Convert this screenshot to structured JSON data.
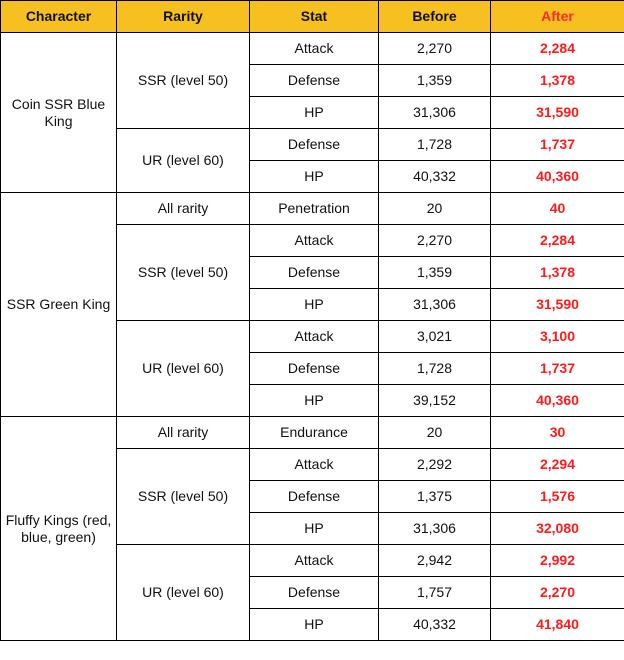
{
  "table": {
    "headers": {
      "character": "Character",
      "rarity": "Rarity",
      "stat": "Stat",
      "before": "Before",
      "after": "After"
    },
    "colors": {
      "header_bg": "#f6c021",
      "after_text": "#ff1a1a",
      "border": "#000000"
    },
    "groups": [
      {
        "character": "Coin SSR Blue King",
        "rarities": [
          {
            "rarity": "SSR (level 50)",
            "rows": [
              {
                "stat": "Attack",
                "before": "2,270",
                "after": "2,284"
              },
              {
                "stat": "Defense",
                "before": "1,359",
                "after": "1,378"
              },
              {
                "stat": "HP",
                "before": "31,306",
                "after": "31,590"
              }
            ]
          },
          {
            "rarity": "UR (level 60)",
            "rows": [
              {
                "stat": "Defense",
                "before": "1,728",
                "after": "1,737"
              },
              {
                "stat": "HP",
                "before": "40,332",
                "after": "40,360"
              }
            ]
          }
        ]
      },
      {
        "character": "SSR Green King",
        "rarities": [
          {
            "rarity": "All rarity",
            "rows": [
              {
                "stat": "Penetration",
                "before": "20",
                "after": "40"
              }
            ]
          },
          {
            "rarity": "SSR (level 50)",
            "rows": [
              {
                "stat": "Attack",
                "before": "2,270",
                "after": "2,284"
              },
              {
                "stat": "Defense",
                "before": "1,359",
                "after": "1,378"
              },
              {
                "stat": "HP",
                "before": "31,306",
                "after": "31,590"
              }
            ]
          },
          {
            "rarity": "UR (level 60)",
            "rows": [
              {
                "stat": "Attack",
                "before": "3,021",
                "after": "3,100"
              },
              {
                "stat": "Defense",
                "before": "1,728",
                "after": "1,737"
              },
              {
                "stat": "HP",
                "before": "39,152",
                "after": "40,360"
              }
            ]
          }
        ]
      },
      {
        "character": "Fluffy Kings (red, blue, green)",
        "rarities": [
          {
            "rarity": "All rarity",
            "rows": [
              {
                "stat": "Endurance",
                "before": "20",
                "after": "30"
              }
            ]
          },
          {
            "rarity": "SSR (level 50)",
            "rows": [
              {
                "stat": "Attack",
                "before": "2,292",
                "after": "2,294"
              },
              {
                "stat": "Defense",
                "before": "1,375",
                "after": "1,576"
              },
              {
                "stat": "HP",
                "before": "31,306",
                "after": "32,080"
              }
            ]
          },
          {
            "rarity": "UR (level 60)",
            "rows": [
              {
                "stat": "Attack",
                "before": "2,942",
                "after": "2,992"
              },
              {
                "stat": "Defense",
                "before": "1,757",
                "after": "2,270"
              },
              {
                "stat": "HP",
                "before": "40,332",
                "after": "41,840"
              }
            ]
          }
        ]
      }
    ]
  }
}
